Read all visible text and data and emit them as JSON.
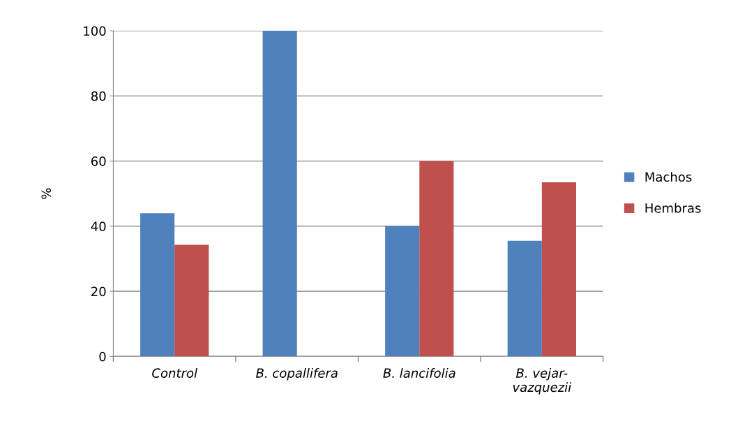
{
  "chart_data": {
    "type": "bar",
    "ylabel": "%",
    "categories": [
      "Control",
      "B. copallifera",
      "B. lancifolia",
      "B. vejar-\nvazquezii"
    ],
    "series": [
      {
        "name": "Machos",
        "color": "#4f81bd",
        "values": [
          44,
          100,
          40,
          35.5
        ]
      },
      {
        "name": "Hembras",
        "color": "#c0504d",
        "values": [
          34.3,
          0,
          60,
          53.5
        ]
      }
    ],
    "ylim": [
      0,
      100
    ],
    "yticks": [
      0,
      20,
      40,
      60,
      80,
      100
    ],
    "grid": "y",
    "legend": "right"
  }
}
